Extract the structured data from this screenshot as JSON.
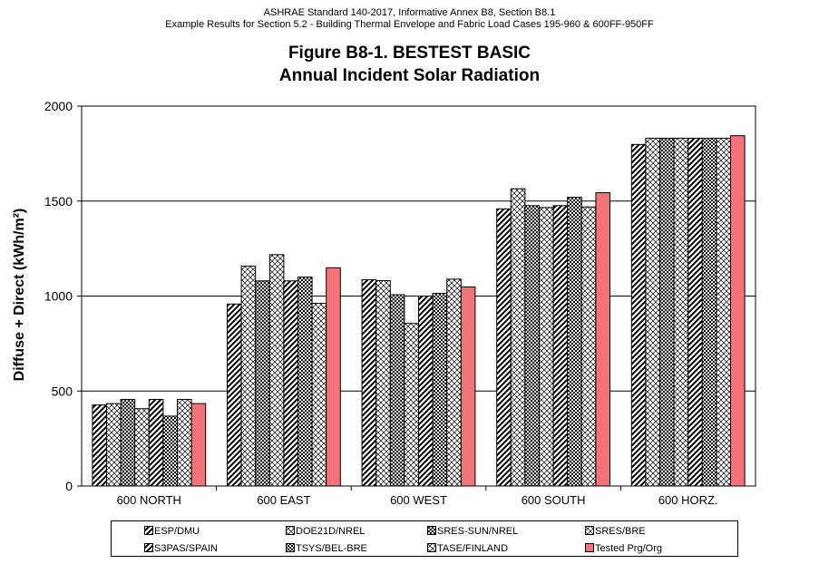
{
  "header": {
    "line1": "ASHRAE Standard 140-2017, Informative Annex B8, Section B8.1",
    "line2": "Example Results for Section 5.2 - Building Thermal Envelope and Fabric Load Cases 195-960 & 600FF-950FF"
  },
  "chart_data": {
    "type": "bar",
    "title": "Figure B8-1.  BESTEST BASIC",
    "subtitle": "Annual Incident Solar Radiation",
    "ylabel": "Diffuse + Direct (kWh/m²)",
    "xlabel": "",
    "ylim": [
      0,
      2000
    ],
    "yticks": [
      0,
      500,
      1000,
      1500,
      2000
    ],
    "grid": true,
    "legend_position": "bottom",
    "categories": [
      "600 NORTH",
      "600 EAST",
      "600 WEST",
      "600 SOUTH",
      "600 HORZ."
    ],
    "series": [
      {
        "name": "ESP/DMU",
        "pattern": "diag-wide",
        "values": [
          427,
          958,
          1086,
          1459,
          1798
        ]
      },
      {
        "name": "DOE21D/NREL",
        "pattern": "diamond",
        "values": [
          434,
          1158,
          1081,
          1565,
          1831
        ]
      },
      {
        "name": "SRES-SUN/NREL",
        "pattern": "diamond-dense",
        "values": [
          456,
          1080,
          1007,
          1476,
          1831
        ]
      },
      {
        "name": "SRES/BRE",
        "pattern": "diamond",
        "values": [
          407,
          1218,
          856,
          1466,
          1831
        ]
      },
      {
        "name": "S3PAS/SPAIN",
        "pattern": "diag-wide",
        "values": [
          456,
          1080,
          1000,
          1476,
          1831
        ]
      },
      {
        "name": "TSYS/BEL-BRE",
        "pattern": "check",
        "values": [
          368,
          1100,
          1014,
          1520,
          1831
        ]
      },
      {
        "name": "TASE/FINLAND",
        "pattern": "diamond",
        "values": [
          456,
          962,
          1089,
          1469,
          1831
        ]
      },
      {
        "name": "Tested Prg/Org",
        "pattern": "solid",
        "values": [
          434,
          1149,
          1048,
          1544,
          1844
        ]
      }
    ],
    "colors": {
      "tested": "#f47378",
      "bar_fill": "#ffffff",
      "stroke": "#000000"
    }
  }
}
